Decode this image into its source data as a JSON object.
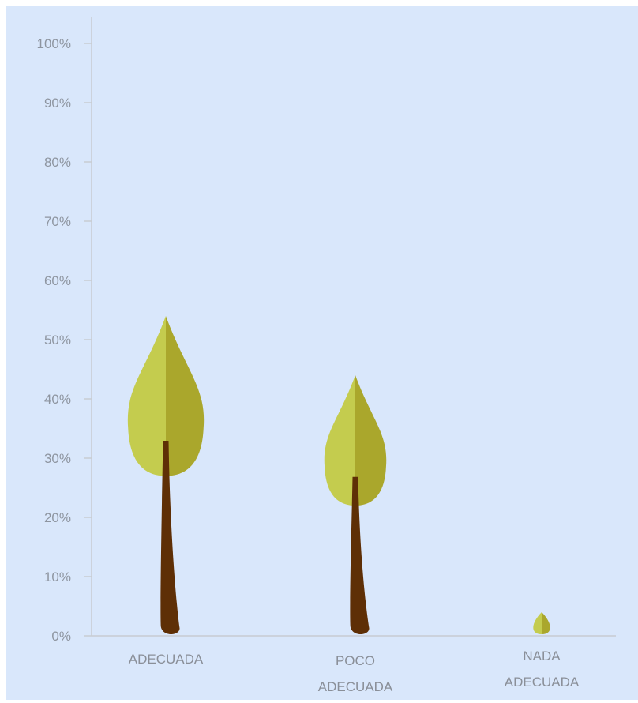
{
  "chart_data": {
    "type": "bar",
    "categories": [
      [
        "ADECUADA"
      ],
      [
        "POCO",
        "ADECUADA"
      ],
      [
        "NADA",
        "ADECUADA"
      ]
    ],
    "values": [
      54,
      44,
      4
    ],
    "ylim": [
      0,
      100
    ],
    "ytick_values": [
      0,
      10,
      20,
      30,
      40,
      50,
      60,
      70,
      80,
      90,
      100
    ],
    "ytick_labels": [
      "0%",
      "10%",
      "20%",
      "30%",
      "40%",
      "50%",
      "60%",
      "70%",
      "80%",
      "90%",
      "100%"
    ],
    "mark_style": "tree",
    "grid": false,
    "colors": {
      "background": "#d9e7fb",
      "leaf_light": "#c4cc4e",
      "leaf_dark": "#aaa72c",
      "trunk": "#5e2f06",
      "axis": "#c8ccd2",
      "text": "#8e95a0"
    }
  }
}
